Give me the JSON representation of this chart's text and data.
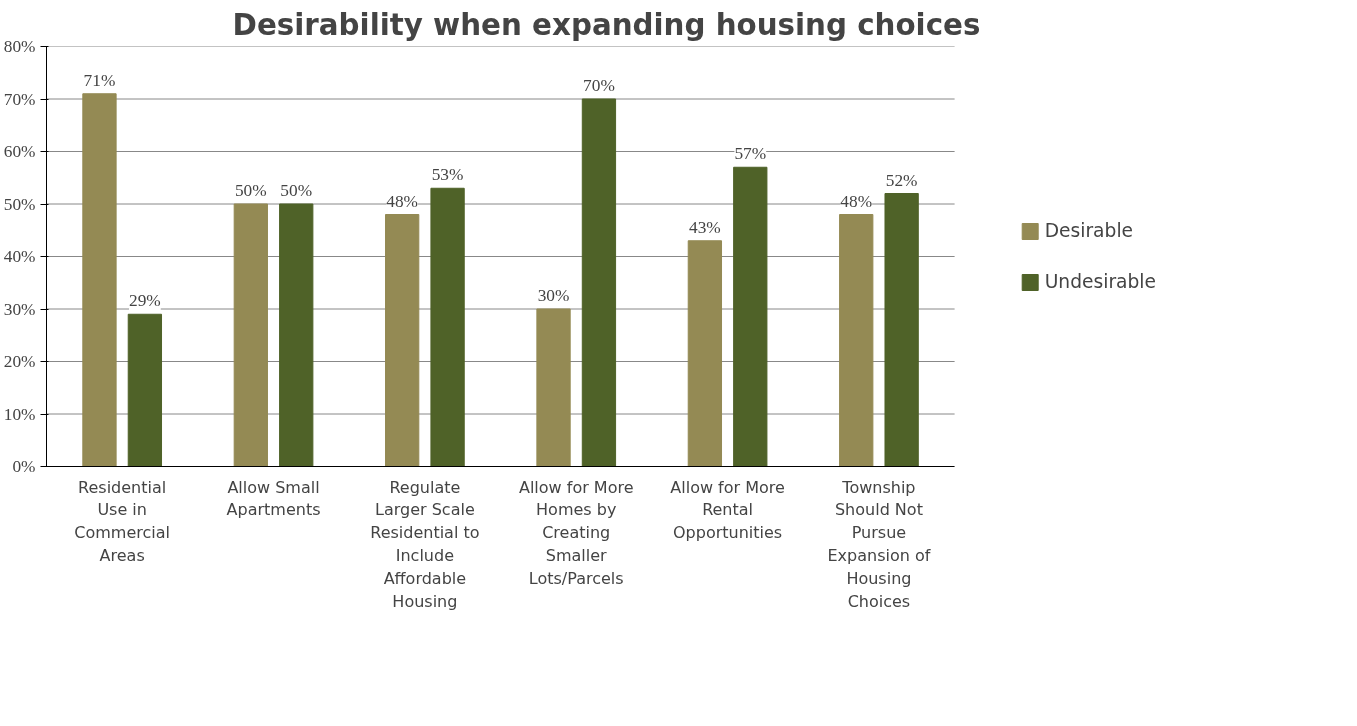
{
  "chart_data": {
    "type": "bar",
    "title": "Desirability when expanding housing choices",
    "categories": [
      "Residential Use in Commercial Areas",
      "Allow Small Apartments",
      "Regulate Larger Scale Residential to Include Affordable Housing",
      "Allow for More Homes by Creating Smaller Lots/Parcels",
      "Allow for More Rental Opportunities",
      "Township Should Not Pursue Expansion of Housing Choices"
    ],
    "series": [
      {
        "name": "Desirable",
        "color": "#948a54",
        "values": [
          71,
          50,
          48,
          30,
          43,
          48
        ],
        "value_labels": [
          "71%",
          "50%",
          "48%",
          "30%",
          "43%",
          "48%"
        ]
      },
      {
        "name": "Undesirable",
        "color": "#4f6228",
        "values": [
          29,
          50,
          53,
          70,
          57,
          52
        ],
        "value_labels": [
          "29%",
          "50%",
          "53%",
          "70%",
          "57%",
          "52%"
        ]
      }
    ],
    "ylim": [
      0,
      80
    ],
    "yticks": [
      {
        "value": 0,
        "label": "0%"
      },
      {
        "value": 10,
        "label": "10%"
      },
      {
        "value": 20,
        "label": "20%"
      },
      {
        "value": 30,
        "label": "30%"
      },
      {
        "value": 40,
        "label": "40%"
      },
      {
        "value": 50,
        "label": "50%"
      },
      {
        "value": 60,
        "label": "60%"
      },
      {
        "value": 70,
        "label": "70%"
      },
      {
        "value": 80,
        "label": "80%"
      }
    ],
    "grid": "y",
    "legend": "right"
  }
}
